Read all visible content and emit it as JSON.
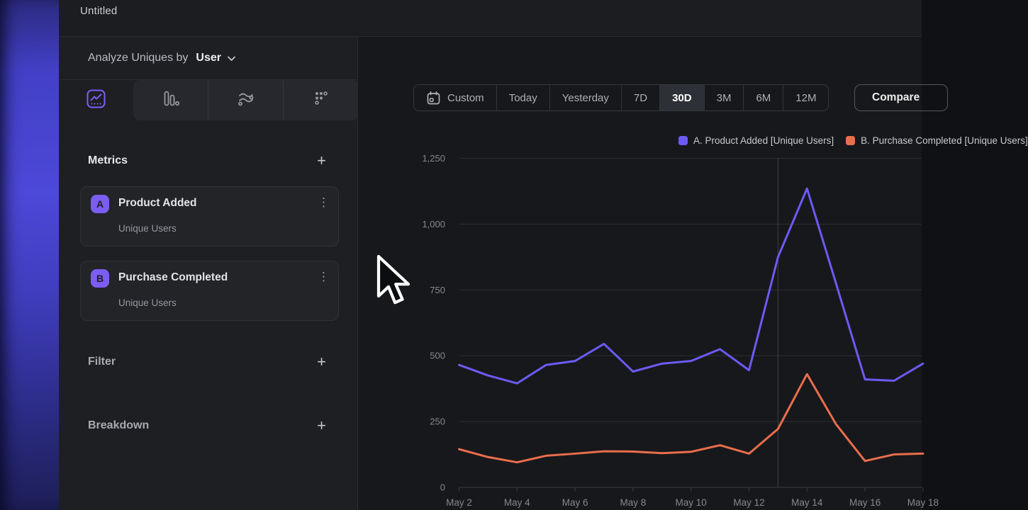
{
  "window": {
    "title": "Untitled"
  },
  "sidebar": {
    "analyze_label": "Analyze Uniques by",
    "analyze_value": "User",
    "chart_type_tabs": [
      {
        "icon": "line-chart-icon",
        "selected": true
      },
      {
        "icon": "bar-chart-icon",
        "selected": false
      },
      {
        "icon": "flow-icon",
        "selected": false
      },
      {
        "icon": "retention-grid-icon",
        "selected": false
      }
    ],
    "metrics": {
      "title": "Metrics",
      "items": [
        {
          "badge": "A",
          "name": "Product Added",
          "measure": "Unique Users"
        },
        {
          "badge": "B",
          "name": "Purchase Completed",
          "measure": "Unique Users"
        }
      ]
    },
    "filter": {
      "title": "Filter"
    },
    "breakdown": {
      "title": "Breakdown"
    }
  },
  "toolbar": {
    "ranges": [
      "Custom",
      "Today",
      "Yesterday",
      "7D",
      "30D",
      "3M",
      "6M",
      "12M"
    ],
    "selected_range": "30D",
    "compare_label": "Compare"
  },
  "icons": {
    "plus": "+",
    "kebab": "⋮"
  },
  "colors": {
    "accent_purple": "#6b5bf5",
    "accent_orange": "#e96e4c",
    "grid": "#2c2e32",
    "axis_text": "#85888d"
  },
  "chart_data": {
    "type": "line",
    "title": "",
    "xlabel": "",
    "ylabel": "",
    "x": [
      "May 2",
      "May 3",
      "May 4",
      "May 5",
      "May 6",
      "May 7",
      "May 8",
      "May 9",
      "May 10",
      "May 11",
      "May 12",
      "May 13",
      "May 14",
      "May 15",
      "May 16",
      "May 17",
      "May 18"
    ],
    "x_tick_labels": [
      "May 2",
      "May 4",
      "May 6",
      "May 8",
      "May 10",
      "May 12",
      "May 14",
      "May 16",
      "May 18"
    ],
    "y_ticks": [
      "0",
      "250",
      "500",
      "750",
      "1,000",
      "1,250"
    ],
    "ylim": [
      0,
      1250
    ],
    "grid": true,
    "legend_position": "top-right",
    "vertical_marker_x": "May 13",
    "series": [
      {
        "name": "A. Product Added [Unique Users]",
        "color": "#6b5bf5",
        "values": [
          465,
          425,
          395,
          465,
          480,
          545,
          440,
          470,
          480,
          525,
          445,
          875,
          1135,
          775,
          410,
          405,
          470
        ]
      },
      {
        "name": "B. Purchase Completed [Unique Users]",
        "color": "#e96e4c",
        "values": [
          145,
          115,
          95,
          120,
          128,
          137,
          136,
          130,
          135,
          160,
          128,
          222,
          430,
          240,
          100,
          125,
          128
        ]
      }
    ]
  }
}
